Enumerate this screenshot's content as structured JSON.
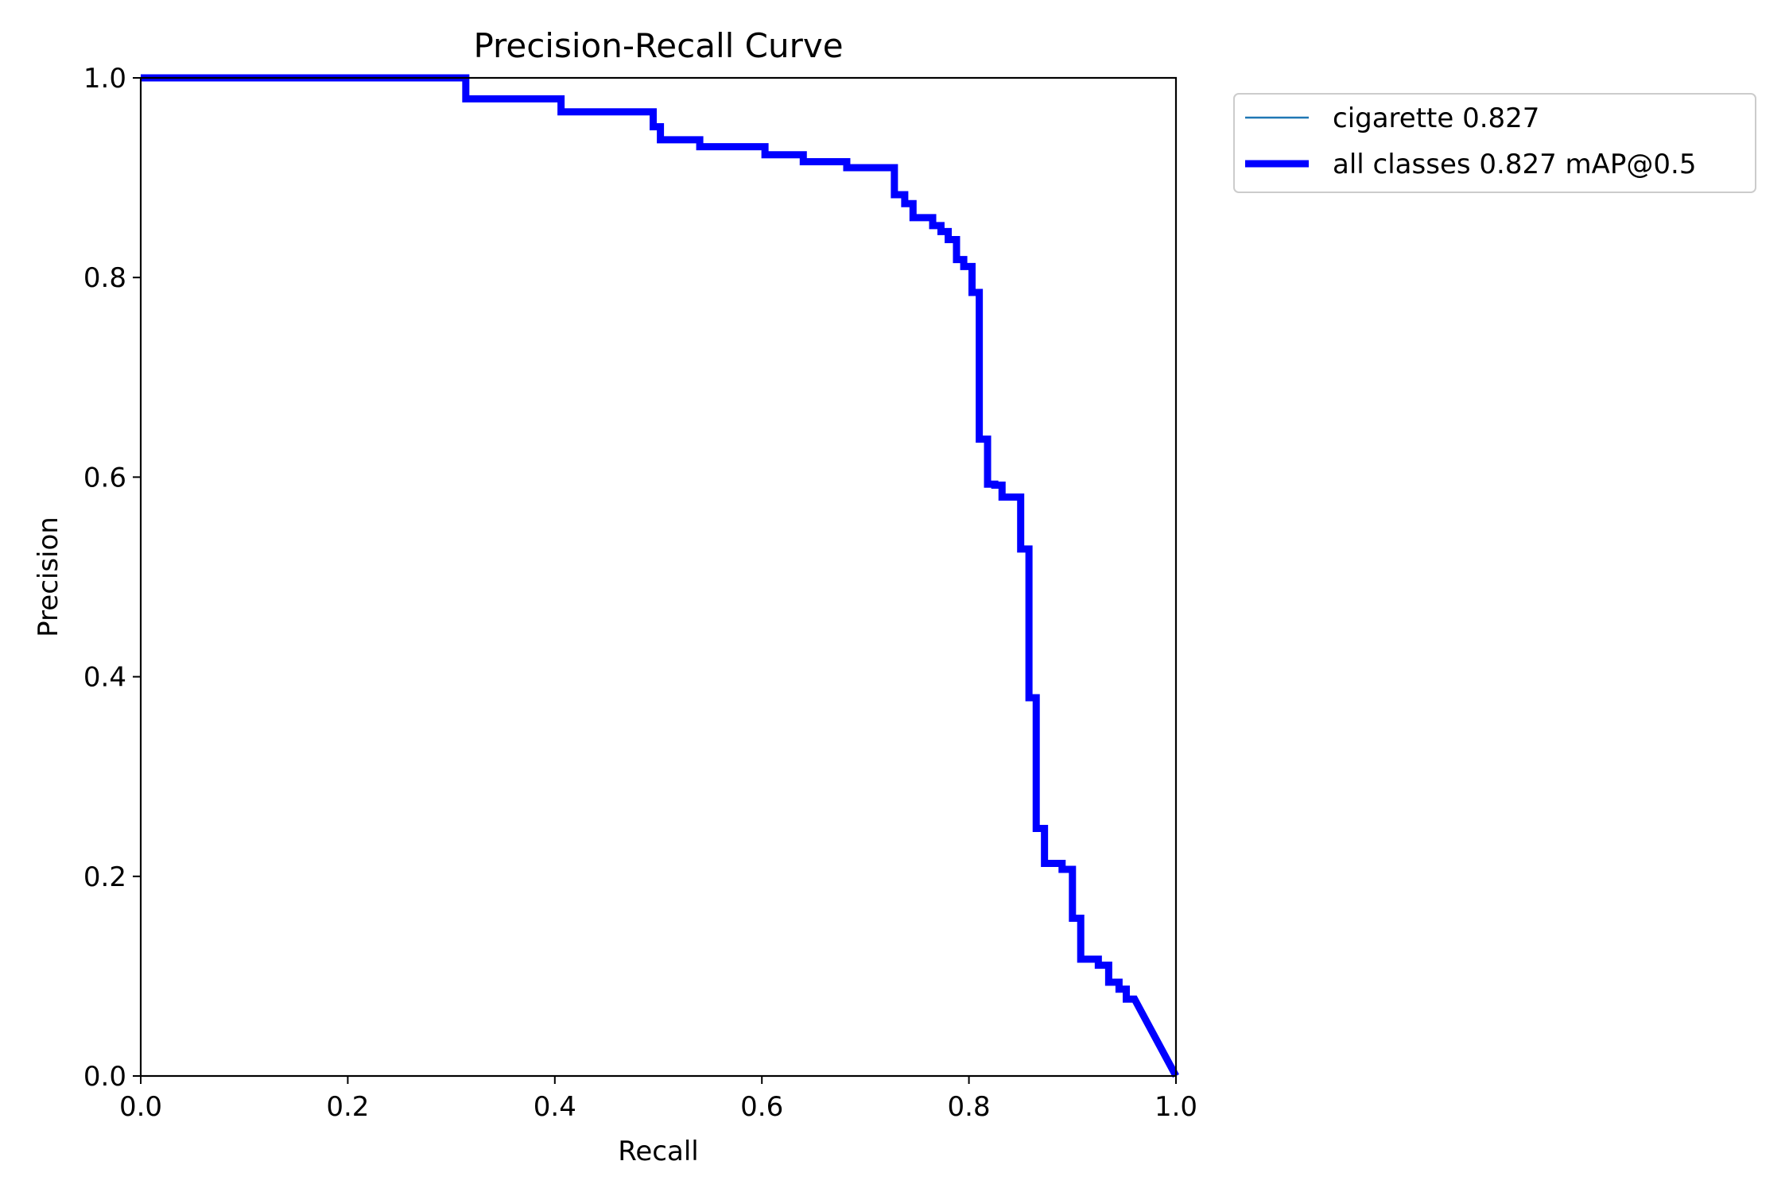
{
  "chart_data": {
    "type": "line",
    "title": "Precision-Recall Curve",
    "xlabel": "Recall",
    "ylabel": "Precision",
    "xlim": [
      0,
      1
    ],
    "ylim": [
      0,
      1
    ],
    "xticks": [
      "0.0",
      "0.2",
      "0.4",
      "0.6",
      "0.8",
      "1.0"
    ],
    "yticks": [
      "0.0",
      "0.2",
      "0.4",
      "0.6",
      "0.8",
      "1.0"
    ],
    "grid": false,
    "legend_position": "outside-top-right",
    "series": [
      {
        "name": "cigarette 0.827",
        "color": "#1f77b4",
        "style": "thin",
        "x": [
          0,
          0.314,
          0.314,
          0.406,
          0.406,
          0.495,
          0.495,
          0.502,
          0.502,
          0.54,
          0.54,
          0.603,
          0.603,
          0.64,
          0.64,
          0.682,
          0.682,
          0.728,
          0.728,
          0.738,
          0.738,
          0.746,
          0.746,
          0.765,
          0.765,
          0.773,
          0.773,
          0.78,
          0.78,
          0.788,
          0.788,
          0.795,
          0.795,
          0.803,
          0.803,
          0.81,
          0.81,
          0.818,
          0.818,
          0.825,
          0.825,
          0.832,
          0.832,
          0.85,
          0.85,
          0.858,
          0.858,
          0.865,
          0.865,
          0.873,
          0.873,
          0.89,
          0.89,
          0.9,
          0.9,
          0.908,
          0.908,
          0.925,
          0.925,
          0.935,
          0.935,
          0.945,
          0.945,
          0.952,
          0.952,
          0.96,
          1.0
        ],
        "y": [
          1.0,
          1.0,
          0.979,
          0.979,
          0.966,
          0.966,
          0.951,
          0.951,
          0.938,
          0.938,
          0.931,
          0.931,
          0.923,
          0.923,
          0.916,
          0.916,
          0.91,
          0.91,
          0.883,
          0.883,
          0.874,
          0.874,
          0.86,
          0.86,
          0.852,
          0.852,
          0.846,
          0.846,
          0.838,
          0.838,
          0.818,
          0.818,
          0.811,
          0.811,
          0.785,
          0.785,
          0.638,
          0.638,
          0.593,
          0.593,
          0.592,
          0.592,
          0.58,
          0.58,
          0.528,
          0.528,
          0.379,
          0.379,
          0.248,
          0.248,
          0.213,
          0.213,
          0.207,
          0.207,
          0.158,
          0.158,
          0.117,
          0.117,
          0.111,
          0.111,
          0.094,
          0.094,
          0.087,
          0.087,
          0.077,
          0.077,
          0.0
        ]
      },
      {
        "name": "all classes 0.827 mAP@0.5",
        "color": "#0000ff",
        "style": "thick",
        "x": [
          0,
          0.314,
          0.314,
          0.406,
          0.406,
          0.495,
          0.495,
          0.502,
          0.502,
          0.54,
          0.54,
          0.603,
          0.603,
          0.64,
          0.64,
          0.682,
          0.682,
          0.728,
          0.728,
          0.738,
          0.738,
          0.746,
          0.746,
          0.765,
          0.765,
          0.773,
          0.773,
          0.78,
          0.78,
          0.788,
          0.788,
          0.795,
          0.795,
          0.803,
          0.803,
          0.81,
          0.81,
          0.818,
          0.818,
          0.825,
          0.825,
          0.832,
          0.832,
          0.85,
          0.85,
          0.858,
          0.858,
          0.865,
          0.865,
          0.873,
          0.873,
          0.89,
          0.89,
          0.9,
          0.9,
          0.908,
          0.908,
          0.925,
          0.925,
          0.935,
          0.935,
          0.945,
          0.945,
          0.952,
          0.952,
          0.96,
          1.0
        ],
        "y": [
          1.0,
          1.0,
          0.979,
          0.979,
          0.966,
          0.966,
          0.951,
          0.951,
          0.938,
          0.938,
          0.931,
          0.931,
          0.923,
          0.923,
          0.916,
          0.916,
          0.91,
          0.91,
          0.883,
          0.883,
          0.874,
          0.874,
          0.86,
          0.86,
          0.852,
          0.852,
          0.846,
          0.846,
          0.838,
          0.838,
          0.818,
          0.818,
          0.811,
          0.811,
          0.785,
          0.785,
          0.638,
          0.638,
          0.593,
          0.593,
          0.592,
          0.592,
          0.58,
          0.58,
          0.528,
          0.528,
          0.379,
          0.379,
          0.248,
          0.248,
          0.213,
          0.213,
          0.207,
          0.207,
          0.158,
          0.158,
          0.117,
          0.117,
          0.111,
          0.111,
          0.094,
          0.094,
          0.087,
          0.087,
          0.077,
          0.077,
          0.0
        ]
      }
    ]
  }
}
